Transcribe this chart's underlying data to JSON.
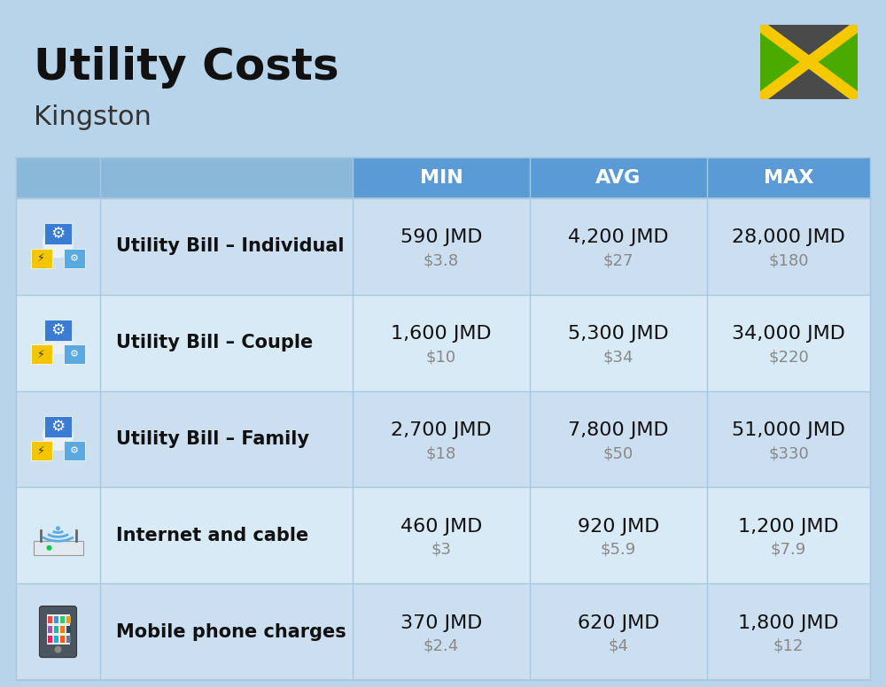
{
  "title": "Utility Costs",
  "subtitle": "Kingston",
  "background_color": "#b8d4ea",
  "header_bg_color": "#5b9bd5",
  "header_text_color": "#ffffff",
  "row_bg_color_light": "#ccdff0",
  "row_bg_color_dark": "#bdd4e8",
  "cell_border_color": "#a8c8e0",
  "col_header_labels": [
    "MIN",
    "AVG",
    "MAX"
  ],
  "rows": [
    {
      "label": "Utility Bill – Individual",
      "min_jmd": "590 JMD",
      "min_usd": "$3.8",
      "avg_jmd": "4,200 JMD",
      "avg_usd": "$27",
      "max_jmd": "28,000 JMD",
      "max_usd": "$180"
    },
    {
      "label": "Utility Bill – Couple",
      "min_jmd": "1,600 JMD",
      "min_usd": "$10",
      "avg_jmd": "5,300 JMD",
      "avg_usd": "$34",
      "max_jmd": "34,000 JMD",
      "max_usd": "$220"
    },
    {
      "label": "Utility Bill – Family",
      "min_jmd": "2,700 JMD",
      "min_usd": "$18",
      "avg_jmd": "7,800 JMD",
      "avg_usd": "$50",
      "max_jmd": "51,000 JMD",
      "max_usd": "$330"
    },
    {
      "label": "Internet and cable",
      "min_jmd": "460 JMD",
      "min_usd": "$3",
      "avg_jmd": "920 JMD",
      "avg_usd": "$5.9",
      "max_jmd": "1,200 JMD",
      "max_usd": "$7.9"
    },
    {
      "label": "Mobile phone charges",
      "min_jmd": "370 JMD",
      "min_usd": "$2.4",
      "avg_jmd": "620 JMD",
      "avg_usd": "$4",
      "max_jmd": "1,800 JMD",
      "max_usd": "$12"
    }
  ],
  "title_fontsize": 36,
  "subtitle_fontsize": 22,
  "header_fontsize": 16,
  "label_fontsize": 15,
  "value_fontsize": 16,
  "usd_fontsize": 13,
  "flag": {
    "black": "#4a4a4a",
    "yellow": "#f5c800",
    "green": "#4aaa00"
  }
}
